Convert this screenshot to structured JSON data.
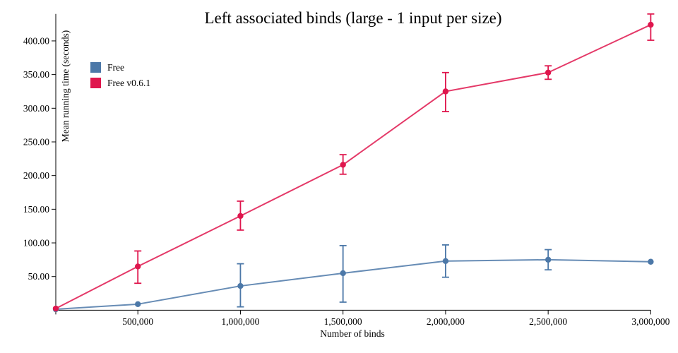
{
  "background": "#ffffff",
  "axis_color": "#000000",
  "chart_data": {
    "type": "line",
    "title": "Left associated binds (large - 1 input per size)",
    "xlabel": "Number of binds",
    "ylabel": "Mean running time (seconds)",
    "grid": false,
    "legend_position": "inside-top-left",
    "xlim": [
      100000,
      3000000
    ],
    "ylim": [
      0,
      440
    ],
    "x": [
      100000,
      500000,
      1000000,
      1500000,
      2000000,
      2500000,
      3000000
    ],
    "x_ticks": [
      500000,
      1000000,
      1500000,
      2000000,
      2500000,
      3000000
    ],
    "x_tick_labels": [
      "500,000",
      "1,000,000",
      "1,500,000",
      "2,000,000",
      "2,500,000",
      "3,000,000"
    ],
    "y_ticks": [
      50,
      100,
      150,
      200,
      250,
      300,
      350,
      400
    ],
    "y_tick_labels": [
      "50.00",
      "100.00",
      "150.00",
      "200.00",
      "250.00",
      "300.00",
      "350.00",
      "400.00"
    ],
    "series": [
      {
        "name": "Free",
        "color": "#4c78a8",
        "values": [
          1.5,
          9,
          36,
          55,
          73,
          75,
          72
        ],
        "err_low": [
          1.5,
          9,
          5,
          12,
          49,
          60,
          72
        ],
        "err_high": [
          1.5,
          9,
          69,
          96,
          97,
          90,
          72
        ]
      },
      {
        "name": "Free v0.6.1",
        "color": "#df164d",
        "values": [
          2.5,
          65,
          140,
          216,
          325,
          353,
          424
        ],
        "err_low": [
          2.5,
          40,
          119,
          202,
          295,
          343,
          401
        ],
        "err_high": [
          2.5,
          88,
          162,
          231,
          353,
          363,
          440
        ]
      }
    ]
  }
}
